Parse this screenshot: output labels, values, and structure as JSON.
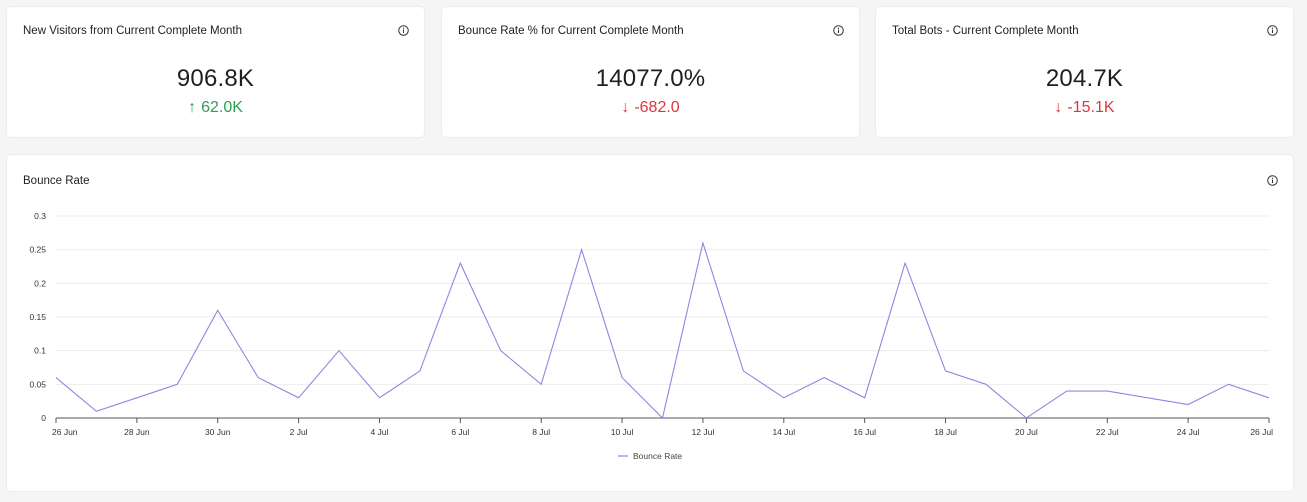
{
  "kpis": [
    {
      "title": "New Visitors from Current Complete Month",
      "value": "906.8K",
      "delta": "62.0K",
      "direction": "up"
    },
    {
      "title": "Bounce Rate % for Current Complete Month",
      "value": "14077.0%",
      "delta": "-682.0",
      "direction": "down"
    },
    {
      "title": "Total Bots - Current Complete Month",
      "value": "204.7K",
      "delta": "-15.1K",
      "direction": "down"
    }
  ],
  "colors": {
    "up": "#2e9e55",
    "down": "#e0353d",
    "line": "#8f86e0"
  },
  "chart": {
    "title": "Bounce Rate"
  },
  "chart_data": {
    "type": "line",
    "title": "Bounce Rate",
    "xlabel": "",
    "ylabel": "",
    "x": [
      "26 Jun",
      "27 Jun",
      "28 Jun",
      "29 Jun",
      "30 Jun",
      "1 Jul",
      "2 Jul",
      "3 Jul",
      "4 Jul",
      "5 Jul",
      "6 Jul",
      "7 Jul",
      "8 Jul",
      "9 Jul",
      "10 Jul",
      "11 Jul",
      "12 Jul",
      "13 Jul",
      "14 Jul",
      "15 Jul",
      "16 Jul",
      "17 Jul",
      "18 Jul",
      "19 Jul",
      "20 Jul",
      "21 Jul",
      "22 Jul",
      "23 Jul",
      "24 Jul",
      "25 Jul",
      "26 Jul"
    ],
    "x_ticks": [
      "26 Jun",
      "28 Jun",
      "30 Jun",
      "2 Jul",
      "4 Jul",
      "6 Jul",
      "8 Jul",
      "10 Jul",
      "12 Jul",
      "14 Jul",
      "16 Jul",
      "18 Jul",
      "20 Jul",
      "22 Jul",
      "24 Jul",
      "26 Jul"
    ],
    "y_ticks": [
      "0",
      "0.05",
      "0.1",
      "0.15",
      "0.2",
      "0.25",
      "0.3"
    ],
    "ylim": [
      0,
      0.3
    ],
    "grid": true,
    "legend_position": "bottom-center",
    "series": [
      {
        "name": "Bounce Rate",
        "values": [
          0.06,
          0.01,
          0.03,
          0.05,
          0.16,
          0.06,
          0.03,
          0.1,
          0.03,
          0.07,
          0.23,
          0.1,
          0.05,
          0.25,
          0.06,
          0.0,
          0.26,
          0.07,
          0.03,
          0.06,
          0.03,
          0.23,
          0.07,
          0.05,
          0.0,
          0.04,
          0.04,
          0.03,
          0.02,
          0.05,
          0.03
        ]
      }
    ]
  }
}
